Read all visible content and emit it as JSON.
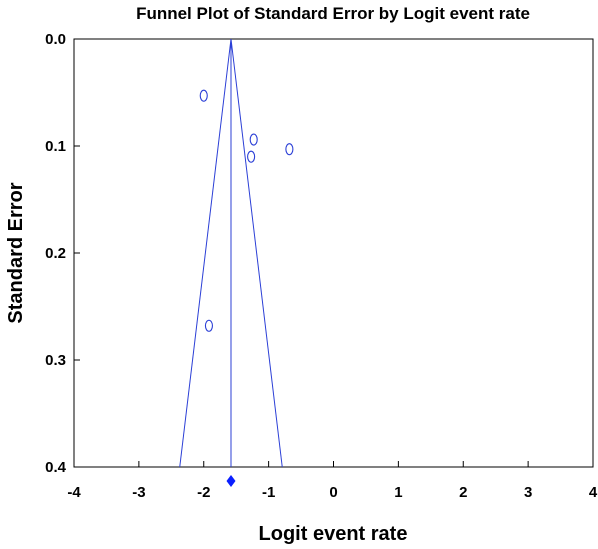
{
  "chart_data": {
    "type": "scatter",
    "title": "Funnel Plot of Standard Error by Logit event rate",
    "xlabel": "Logit event rate",
    "ylabel": "Standard Error",
    "xlim": [
      -4,
      4
    ],
    "ylim": [
      0.0,
      0.4
    ],
    "y_inverted": true,
    "grid": false,
    "xticks": [
      "-4",
      "-3",
      "-2",
      "-1",
      "0",
      "1",
      "2",
      "3",
      "4"
    ],
    "yticks": [
      "0.0",
      "0.1",
      "0.2",
      "0.3",
      "0.4"
    ],
    "points": [
      {
        "x": -2.0,
        "y": 0.053
      },
      {
        "x": -1.23,
        "y": 0.094
      },
      {
        "x": -1.27,
        "y": 0.11
      },
      {
        "x": -0.68,
        "y": 0.103
      },
      {
        "x": -1.92,
        "y": 0.268
      }
    ],
    "summary_estimate": -1.58,
    "funnel_lower_at_max_se": -2.37,
    "funnel_upper_at_max_se": -0.79,
    "marker_color": "#2b3fd6",
    "line_color": "#2b3fd6",
    "diamond_color": "#0a1fff"
  }
}
